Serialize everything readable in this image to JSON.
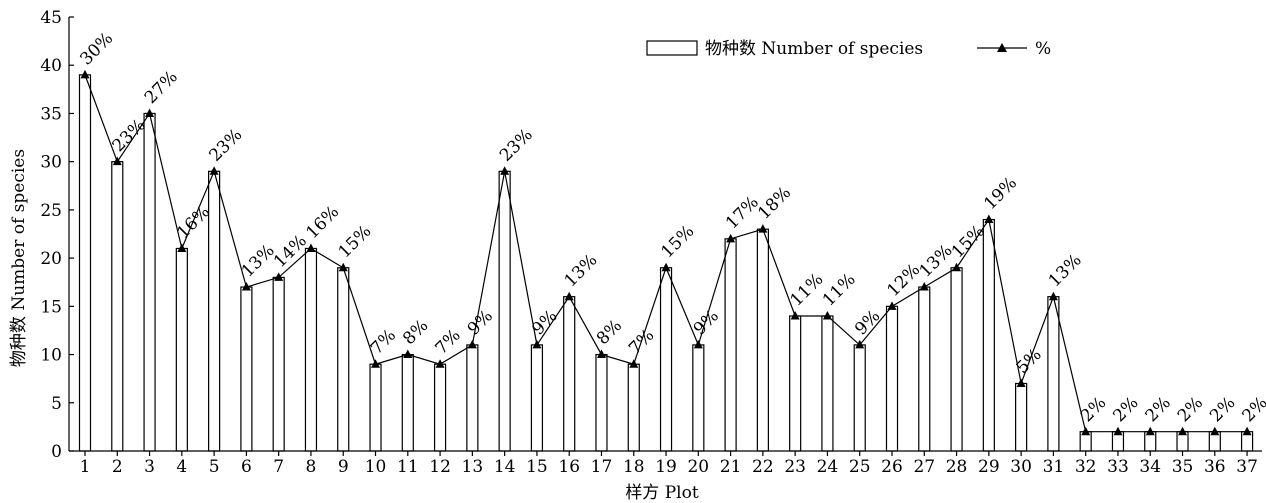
{
  "chart_data": {
    "type": "bar",
    "title": "",
    "xlabel": "样方 Plot",
    "ylabel": "物种数 Number of species",
    "ylim": [
      0,
      45
    ],
    "yticks": [
      0,
      5,
      10,
      15,
      20,
      25,
      30,
      35,
      40,
      45
    ],
    "grid": false,
    "legend_position": "top-right",
    "categories": [
      "1",
      "2",
      "3",
      "4",
      "5",
      "6",
      "7",
      "8",
      "9",
      "10",
      "11",
      "12",
      "13",
      "14",
      "15",
      "16",
      "17",
      "18",
      "19",
      "20",
      "21",
      "22",
      "23",
      "24",
      "25",
      "26",
      "27",
      "28",
      "29",
      "30",
      "31",
      "32",
      "33",
      "34",
      "35",
      "36",
      "37"
    ],
    "series": [
      {
        "name": "物种数 Number of species",
        "kind": "bar",
        "values": [
          39,
          30,
          35,
          21,
          29,
          17,
          18,
          21,
          19,
          9,
          10,
          9,
          11,
          29,
          11,
          16,
          10,
          9,
          19,
          11,
          22,
          23,
          14,
          14,
          11,
          15,
          17,
          19,
          24,
          7,
          16,
          2,
          2,
          2,
          2,
          2,
          2
        ]
      },
      {
        "name": "%",
        "kind": "line",
        "marker": "triangle",
        "values": [
          39,
          30,
          35,
          21,
          29,
          17,
          18,
          21,
          19,
          9,
          10,
          9,
          11,
          29,
          11,
          16,
          10,
          9,
          19,
          11,
          22,
          23,
          14,
          14,
          11,
          15,
          17,
          19,
          24,
          7,
          16,
          2,
          2,
          2,
          2,
          2,
          2
        ],
        "labels": [
          "30%",
          "23%",
          "27%",
          "16%",
          "23%",
          "13%",
          "14%",
          "16%",
          "15%",
          "7%",
          "8%",
          "7%",
          "9%",
          "23%",
          "9%",
          "13%",
          "8%",
          "7%",
          "15%",
          "9%",
          "17%",
          "18%",
          "11%",
          "11%",
          "9%",
          "12%",
          "13%",
          "15%",
          "19%",
          "5%",
          "13%",
          "2%",
          "2%",
          "2%",
          "2%",
          "2%",
          "2%"
        ]
      }
    ]
  },
  "colors": {
    "bar_fill": "#ffffff",
    "stroke": "#000000"
  }
}
